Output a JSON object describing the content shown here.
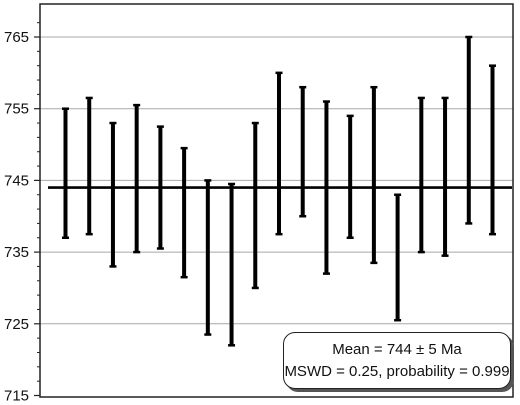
{
  "chart_data": {
    "type": "error-bar",
    "title": "",
    "xlabel": "",
    "ylabel": "",
    "ylim": [
      715,
      769
    ],
    "y_ticks": [
      715,
      725,
      735,
      745,
      755,
      765
    ],
    "y_tick_labels": [
      "715",
      "725",
      "735",
      "745",
      "755",
      "765"
    ],
    "grid": "horizontal",
    "mean_line": 744,
    "bars": [
      {
        "low": 737,
        "high": 755
      },
      {
        "low": 737.5,
        "high": 756.5
      },
      {
        "low": 733,
        "high": 753
      },
      {
        "low": 735,
        "high": 755.5
      },
      {
        "low": 735.5,
        "high": 752.5
      },
      {
        "low": 731.5,
        "high": 749.5
      },
      {
        "low": 723.5,
        "high": 745
      },
      {
        "low": 722,
        "high": 744.5
      },
      {
        "low": 730,
        "high": 753
      },
      {
        "low": 737.5,
        "high": 760
      },
      {
        "low": 740,
        "high": 758
      },
      {
        "low": 732,
        "high": 756
      },
      {
        "low": 737,
        "high": 754
      },
      {
        "low": 733.5,
        "high": 758
      },
      {
        "low": 725.5,
        "high": 743
      },
      {
        "low": 735,
        "high": 756.5
      },
      {
        "low": 734.5,
        "high": 756.5
      },
      {
        "low": 739,
        "high": 765
      },
      {
        "low": 737.5,
        "high": 761
      }
    ],
    "annotation": {
      "mean_text": "Mean = 744 ± 5 Ma",
      "stats_text": "MSWD = 0.25, probability = 0.999",
      "placement": "bottom-right"
    }
  }
}
